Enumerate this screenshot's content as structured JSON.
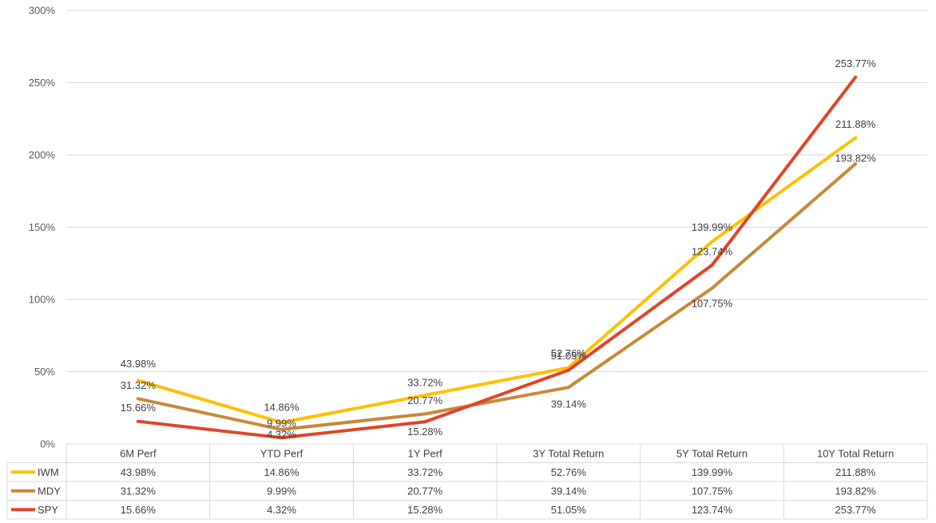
{
  "chart_data": {
    "type": "line",
    "categories": [
      "6M Perf",
      "YTD Perf",
      "1Y Perf",
      "3Y Total Return",
      "5Y Total Return",
      "10Y Total Return"
    ],
    "series": [
      {
        "name": "IWM",
        "color": "#FFC000",
        "values": [
          43.98,
          14.86,
          33.72,
          52.76,
          139.99,
          211.88
        ],
        "labels": [
          "43.98%",
          "14.86%",
          "33.72%",
          "52.76%",
          "139.99%",
          "211.88%"
        ]
      },
      {
        "name": "MDY",
        "color": "#C9883A",
        "values": [
          31.32,
          9.99,
          20.77,
          39.14,
          107.75,
          193.82
        ],
        "labels": [
          "31.32%",
          "9.99%",
          "20.77%",
          "39.14%",
          "107.75%",
          "193.82%"
        ]
      },
      {
        "name": "SPY",
        "color": "#E0442A",
        "values": [
          15.66,
          4.32,
          15.28,
          51.05,
          123.74,
          253.77
        ],
        "labels": [
          "15.66%",
          "4.32%",
          "15.28%",
          "51.05%",
          "123.74%",
          "253.77%"
        ]
      }
    ],
    "ylim": [
      0,
      300
    ],
    "yticks": [
      0,
      50,
      100,
      150,
      200,
      250,
      300
    ],
    "ytick_labels": [
      "0%",
      "50%",
      "100%",
      "150%",
      "200%",
      "250%",
      "300%"
    ],
    "grid": true,
    "legend": "data-table",
    "data_table": true
  }
}
